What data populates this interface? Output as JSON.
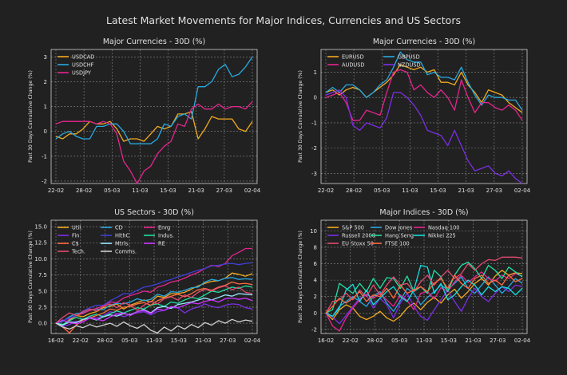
{
  "figure_title": "Latest Market Movements for Major Indices, Currencies and US Sectors",
  "colors": {
    "background": "#212121",
    "text": "#e0e0e0",
    "grid": "#8a8a8a",
    "palette": [
      "#f2a91f",
      "#27a9e1",
      "#e6248f",
      "#7d2ee6",
      "#e34a6f",
      "#1fe0a3",
      "#ff6b40",
      "#cc33ff",
      "#d0d0d0",
      "#3f3fd9"
    ]
  },
  "chart_data": [
    {
      "type": "line",
      "title": "Major Currencies - 30D (%)",
      "ylabel": "Past 30 Days Cumulative Change (%)",
      "xlabel": "",
      "xticks": [
        "22-02",
        "28-02",
        "05-03",
        "11-03",
        "15-03",
        "21-03",
        "27-03",
        "02-04"
      ],
      "yticks": [
        -2,
        -1,
        0,
        1,
        2,
        3
      ],
      "ylim": [
        -2.1,
        3.3
      ],
      "grid": true,
      "legend": "top-left",
      "legend_cols": 1,
      "series": [
        {
          "name": "USDCAD",
          "color": "#f2a91f",
          "values": [
            -0.2,
            -0.3,
            -0.1,
            -0.1,
            0.1,
            0.4,
            0.3,
            0.3,
            0.4,
            0.1,
            -0.4,
            -0.3,
            -0.3,
            -0.4,
            -0.1,
            0.2,
            0.1,
            0.2,
            0.7,
            0.7,
            0.8,
            -0.3,
            0.1,
            0.6,
            0.5,
            0.5,
            0.5,
            0.1,
            0.0,
            0.4
          ]
        },
        {
          "name": "USDCHF",
          "color": "#27a9e1",
          "values": [
            -0.3,
            -0.1,
            0.0,
            -0.2,
            -0.3,
            -0.3,
            0.2,
            0.2,
            0.3,
            0.3,
            0.0,
            -0.5,
            -0.5,
            -0.5,
            -0.5,
            -0.3,
            0.3,
            0.2,
            0.6,
            0.7,
            0.5,
            1.8,
            1.8,
            2.0,
            2.5,
            2.7,
            2.2,
            2.3,
            2.6,
            3.0
          ]
        },
        {
          "name": "USDJPY",
          "color": "#e6248f",
          "values": [
            0.3,
            0.4,
            0.4,
            0.4,
            0.4,
            0.4,
            0.3,
            0.4,
            0.3,
            -0.1,
            -1.2,
            -1.6,
            -2.1,
            -1.6,
            -1.4,
            -0.9,
            -0.6,
            -0.4,
            0.3,
            0.2,
            0.9,
            1.1,
            0.9,
            0.9,
            1.1,
            0.9,
            1.0,
            1.0,
            0.9,
            1.2
          ]
        }
      ]
    },
    {
      "type": "line",
      "title": "Major Currencies - 30D (%)",
      "ylabel": "Past 30 Days Cumulative Change (%)",
      "xlabel": "",
      "xticks": [
        "22-02",
        "28-02",
        "05-03",
        "11-03",
        "15-03",
        "21-03",
        "27-03",
        "02-04"
      ],
      "yticks": [
        -3,
        -2,
        -1,
        0,
        1
      ],
      "ylim": [
        -3.4,
        1.9
      ],
      "grid": true,
      "legend": "top-left",
      "legend_cols": 2,
      "series": [
        {
          "name": "EURUSD",
          "color": "#f2a91f",
          "values": [
            0.2,
            0.3,
            0.1,
            0.3,
            0.4,
            0.3,
            0.0,
            0.2,
            0.4,
            0.6,
            0.9,
            1.3,
            1.2,
            1.1,
            1.2,
            1.0,
            1.1,
            0.6,
            0.6,
            0.5,
            1.0,
            0.5,
            0.2,
            -0.2,
            0.3,
            0.2,
            0.1,
            -0.2,
            -0.4,
            -0.6
          ]
        },
        {
          "name": "GBPUSD",
          "color": "#27a9e1",
          "values": [
            0.2,
            0.4,
            0.2,
            0.5,
            0.5,
            0.3,
            0.0,
            0.2,
            0.5,
            0.7,
            1.2,
            1.8,
            1.5,
            1.4,
            1.4,
            0.9,
            1.0,
            0.8,
            0.8,
            0.7,
            1.2,
            0.6,
            0.1,
            -0.3,
            0.1,
            0.0,
            0.0,
            -0.1,
            -0.1,
            -0.5
          ]
        },
        {
          "name": "AUDUSD",
          "color": "#e6248f",
          "values": [
            0.0,
            0.1,
            0.2,
            -0.2,
            -0.9,
            -0.9,
            -0.5,
            -0.6,
            -0.7,
            0.2,
            1.0,
            1.1,
            1.0,
            0.3,
            0.5,
            0.2,
            0.0,
            0.3,
            0.0,
            -0.5,
            0.7,
            0.0,
            -0.6,
            -0.2,
            -0.2,
            -0.4,
            -0.5,
            -0.3,
            -0.5,
            -0.9
          ]
        },
        {
          "name": "NZDUSD",
          "color": "#7d2ee6",
          "values": [
            0.1,
            0.2,
            0.3,
            0.0,
            -1.1,
            -1.3,
            -1.0,
            -1.1,
            -1.2,
            -0.8,
            0.2,
            0.2,
            0.0,
            -0.3,
            -0.7,
            -1.3,
            -1.4,
            -1.5,
            -1.9,
            -1.3,
            -1.9,
            -2.5,
            -2.9,
            -2.8,
            -2.7,
            -3.0,
            -3.1,
            -2.9,
            -3.2,
            -3.4
          ]
        }
      ]
    },
    {
      "type": "line",
      "title": "US Sectors - 30D (%)",
      "ylabel": "Past 30 Days Cumulative Change (%)",
      "xlabel": "",
      "xticks": [
        "16-02",
        "22-02",
        "28-02",
        "05-03",
        "11-03",
        "15-03",
        "21-03",
        "27-03",
        "02-04"
      ],
      "yticks": [
        0.0,
        2.5,
        5.0,
        7.5,
        10.0,
        12.5,
        15.0
      ],
      "ylim": [
        -1.6,
        16.0
      ],
      "grid": true,
      "legend": "top-left",
      "legend_cols": 3,
      "series": [
        {
          "name": "Util.",
          "color": "#f2a91f",
          "values": [
            0,
            -0.3,
            0.5,
            1.2,
            1.0,
            1.5,
            1.8,
            2.4,
            2.6,
            3.0,
            2.2,
            2.8,
            3.2,
            3.6,
            3.3,
            4.2,
            4.0,
            4.6,
            4.6,
            4.8,
            5.3,
            5.8,
            6.2,
            6.5,
            6.6,
            7.0,
            7.8,
            7.6,
            7.3,
            7.7
          ]
        },
        {
          "name": "CD",
          "color": "#27a9e1",
          "values": [
            0,
            0.3,
            1.0,
            1.5,
            1.6,
            2.0,
            2.2,
            2.1,
            2.8,
            3.1,
            3.0,
            3.3,
            3.8,
            3.5,
            3.7,
            4.5,
            4.2,
            4.9,
            4.8,
            5.1,
            5.5,
            5.6,
            6.4,
            6.8,
            6.6,
            7.0,
            7.1,
            6.8,
            6.9,
            6.8
          ]
        },
        {
          "name": "Enrg",
          "color": "#e6248f",
          "values": [
            0,
            -0.4,
            0.7,
            1.2,
            1.5,
            2.0,
            2.3,
            2.7,
            3.3,
            3.2,
            3.9,
            4.3,
            4.6,
            5.0,
            4.8,
            5.6,
            5.9,
            6.4,
            6.6,
            7.0,
            7.5,
            7.9,
            8.5,
            9.0,
            8.8,
            9.3,
            10.5,
            11.0,
            11.6,
            11.6
          ]
        },
        {
          "name": "Fin",
          "color": "#7d2ee6",
          "values": [
            0,
            -0.5,
            -0.2,
            0.3,
            0.2,
            1.0,
            0.8,
            1.2,
            1.8,
            1.5,
            1.0,
            1.4,
            1.6,
            1.8,
            1.3,
            1.8,
            2.0,
            2.4,
            2.4,
            1.6,
            2.2,
            2.5,
            3.0,
            2.6,
            2.4,
            2.8,
            3.0,
            2.9,
            2.4,
            2.2
          ]
        },
        {
          "name": "HlthC",
          "color": "#3f3fd9",
          "values": [
            0,
            0.4,
            0.8,
            1.2,
            1.9,
            2.4,
            2.8,
            2.8,
            3.5,
            4.0,
            4.6,
            4.6,
            5.1,
            5.6,
            5.8,
            6.1,
            6.5,
            6.8,
            7.2,
            7.5,
            7.9,
            8.2,
            8.5,
            8.9,
            9.0,
            9.2,
            9.3,
            9.1,
            9.3,
            9.4
          ]
        },
        {
          "name": "Indus.",
          "color": "#1fe0a3",
          "values": [
            0,
            -0.2,
            0.4,
            0.9,
            0.6,
            1.1,
            1.4,
            1.0,
            1.5,
            1.9,
            1.6,
            2.0,
            2.4,
            2.2,
            2.8,
            3.0,
            2.6,
            3.3,
            3.1,
            3.6,
            4.0,
            3.8,
            4.4,
            5.0,
            4.8,
            5.2,
            5.6,
            5.4,
            5.8,
            5.6
          ]
        },
        {
          "name": "C$",
          "color": "#ff6b40",
          "values": [
            0,
            -0.6,
            -1.5,
            -0.3,
            0.5,
            0.8,
            1.2,
            1.6,
            2.2,
            2.0,
            2.5,
            2.6,
            3.0,
            3.2,
            2.8,
            3.5,
            3.9,
            4.2,
            4.5,
            4.1,
            4.6,
            5.2,
            5.4,
            5.1,
            5.6,
            5.9,
            6.4,
            6.1,
            6.2,
            6.0
          ]
        },
        {
          "name": "Mtrls.",
          "color": "#99e6ff",
          "values": [
            0,
            -0.3,
            0.2,
            0.1,
            0.6,
            0.8,
            0.5,
            1.0,
            1.3,
            1.1,
            1.5,
            1.3,
            1.8,
            2.1,
            1.6,
            2.4,
            2.6,
            2.3,
            2.9,
            3.1,
            3.3,
            3.6,
            3.9,
            3.6,
            4.0,
            4.4,
            4.2,
            4.6,
            4.5,
            4.4
          ]
        },
        {
          "name": "RE",
          "color": "#cc33ff",
          "values": [
            0,
            0.5,
            0.1,
            -0.1,
            0.2,
            0.8,
            0.6,
            0.4,
            1.0,
            1.4,
            1.6,
            1.2,
            1.8,
            2.0,
            1.5,
            2.2,
            2.0,
            2.6,
            2.4,
            2.8,
            3.2,
            3.0,
            3.4,
            3.6,
            3.3,
            3.8,
            3.9,
            3.7,
            3.9,
            3.5
          ]
        },
        {
          "name": "Tech.",
          "color": "#e34a6f",
          "values": [
            0,
            0.9,
            1.6,
            1.2,
            1.8,
            2.2,
            1.9,
            2.6,
            3.0,
            2.4,
            3.2,
            2.8,
            2.0,
            2.8,
            3.4,
            3.0,
            3.8,
            4.1,
            3.6,
            4.4,
            4.0,
            4.8,
            5.3,
            5.0,
            5.5,
            5.8,
            5.2,
            5.6,
            4.8,
            4.6
          ]
        },
        {
          "name": "Comms.",
          "color": "#d0d0d0",
          "values": [
            0,
            -0.6,
            -0.9,
            -0.4,
            -0.7,
            -0.2,
            -0.6,
            -0.3,
            0.0,
            -0.5,
            0.2,
            -0.4,
            -0.8,
            -0.2,
            -1.1,
            -1.5,
            -0.6,
            -1.2,
            -0.4,
            -0.9,
            -0.2,
            -0.7,
            0.1,
            -0.3,
            0.4,
            0.0,
            0.6,
            0.2,
            0.5,
            0.3
          ]
        }
      ]
    },
    {
      "type": "line",
      "title": "Major Indices - 30D (%)",
      "ylabel": "Past 30 Days Cumulative Change (%)",
      "xlabel": "",
      "xticks": [
        "16-02",
        "22-02",
        "28-02",
        "05-03",
        "11-03",
        "15-03",
        "21-03",
        "27-03",
        "02-04"
      ],
      "yticks": [
        -2,
        0,
        2,
        4,
        6,
        8,
        10
      ],
      "ylim": [
        -2.5,
        11.3
      ],
      "grid": true,
      "legend": "top-left",
      "legend_cols": 3,
      "series": [
        {
          "name": "S&P 500",
          "color": "#f2a91f",
          "values": [
            0,
            -0.8,
            0.4,
            1.0,
            0.6,
            -0.4,
            -0.8,
            -0.4,
            0.2,
            -0.6,
            -1.0,
            -0.4,
            0.6,
            1.2,
            0.4,
            1.3,
            1.9,
            1.2,
            2.2,
            2.9,
            1.8,
            2.6,
            3.6,
            4.2,
            3.4,
            4.5,
            5.2,
            4.6,
            4.9,
            4.8
          ]
        },
        {
          "name": "Dow Jones",
          "color": "#27a9e1",
          "values": [
            0,
            -0.4,
            0.8,
            1.4,
            2.0,
            1.4,
            0.8,
            2.0,
            2.6,
            1.2,
            0.2,
            1.5,
            3.0,
            2.4,
            1.0,
            1.9,
            2.6,
            3.4,
            2.8,
            3.6,
            4.4,
            3.0,
            2.4,
            3.4,
            4.4,
            3.4,
            2.4,
            3.2,
            4.2,
            3.6
          ]
        },
        {
          "name": "Nasdaq 100",
          "color": "#e6248f",
          "values": [
            0,
            -1.6,
            -2.2,
            -0.6,
            0.6,
            1.6,
            2.3,
            1.8,
            2.4,
            1.6,
            0.8,
            2.2,
            1.5,
            0.4,
            2.4,
            2.6,
            1.7,
            3.1,
            2.6,
            3.8,
            4.6,
            3.7,
            4.4,
            5.0,
            4.2,
            3.9,
            4.6,
            4.2,
            4.8,
            4.5
          ]
        },
        {
          "name": "Russell 2000",
          "color": "#7d2ee6",
          "values": [
            0,
            -0.5,
            -1.3,
            -0.3,
            0.8,
            1.8,
            2.2,
            0.6,
            1.8,
            1.0,
            -0.6,
            1.2,
            2.4,
            0.8,
            -0.4,
            -0.9,
            0.4,
            1.6,
            2.8,
            1.4,
            0.2,
            1.8,
            3.0,
            2.0,
            1.4,
            2.4,
            3.2,
            2.6,
            3.4,
            3.2
          ]
        },
        {
          "name": "Hang Seng",
          "color": "#1fe0a3",
          "values": [
            0,
            0.4,
            3.6,
            3.0,
            2.4,
            3.6,
            2.6,
            4.2,
            3.0,
            4.3,
            4.2,
            3.0,
            4.5,
            2.6,
            3.2,
            2.4,
            5.2,
            4.4,
            2.6,
            4.6,
            5.8,
            6.2,
            5.4,
            4.2,
            5.8,
            5.2,
            4.2,
            5.6,
            5.0,
            4.4
          ]
        },
        {
          "name": "Nikkei 225",
          "color": "#0fe0e0",
          "values": [
            0,
            -0.4,
            0.6,
            2.8,
            3.5,
            1.4,
            2.8,
            1.0,
            1.8,
            2.6,
            3.2,
            2.0,
            1.4,
            2.8,
            5.8,
            5.6,
            2.4,
            3.6,
            1.6,
            2.2,
            3.2,
            4.0,
            3.4,
            2.2,
            3.2,
            2.6,
            3.2,
            3.0,
            2.2,
            3.0
          ]
        },
        {
          "name": "EU Stoxx 50",
          "color": "#e34a6f",
          "values": [
            0,
            1.4,
            1.6,
            2.4,
            1.6,
            2.8,
            2.0,
            3.4,
            2.2,
            3.4,
            4.4,
            3.4,
            3.6,
            2.6,
            3.8,
            4.6,
            3.4,
            4.4,
            5.2,
            4.2,
            4.8,
            6.0,
            5.2,
            6.0,
            6.5,
            6.4,
            6.8,
            6.8,
            6.8,
            6.7
          ]
        },
        {
          "name": "FTSE 100",
          "color": "#ff6b40",
          "values": [
            0,
            0.8,
            1.8,
            1.2,
            1.8,
            2.6,
            1.4,
            2.2,
            2.0,
            3.0,
            1.8,
            3.4,
            2.4,
            2.8,
            3.2,
            2.6,
            3.6,
            4.2,
            3.0,
            4.6,
            3.6,
            3.0,
            4.2,
            4.6,
            3.6,
            4.0,
            3.4,
            4.6,
            3.8,
            4.2
          ]
        }
      ]
    }
  ]
}
